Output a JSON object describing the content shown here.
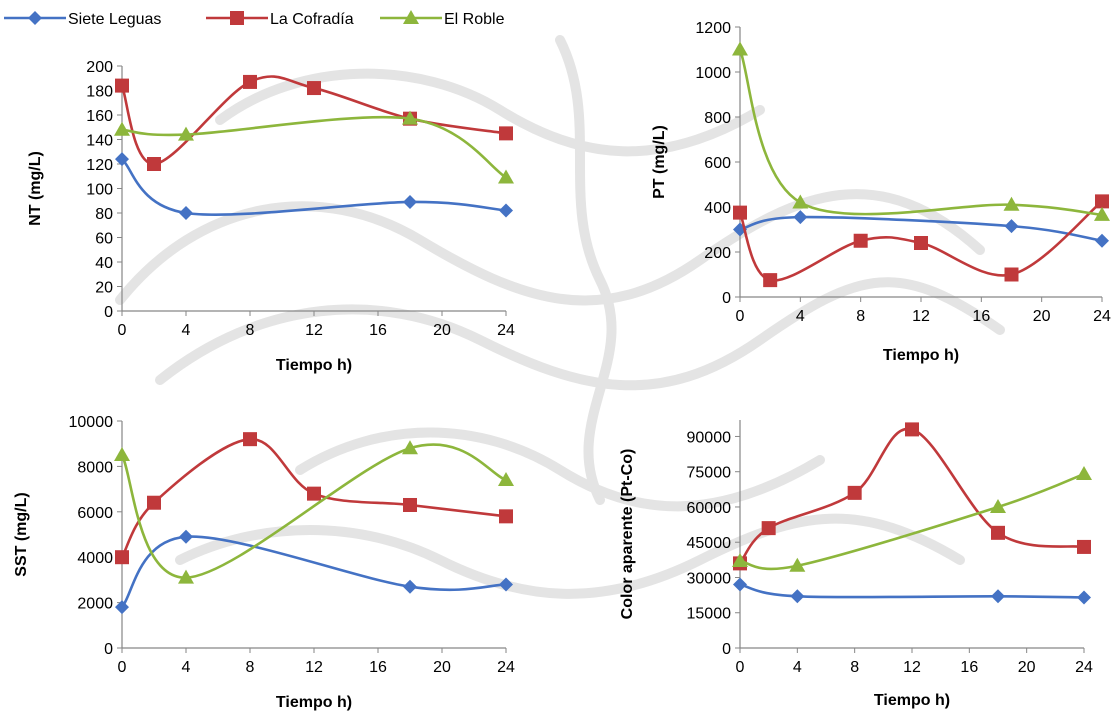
{
  "legend": {
    "items": [
      {
        "label": "Siete Leguas",
        "color": "#4472C4",
        "marker": "diamond"
      },
      {
        "label": "La Cofradía",
        "color": "#C0393B",
        "marker": "square"
      },
      {
        "label": "El Roble",
        "color": "#8DB63C",
        "marker": "triangle"
      }
    ]
  },
  "chart_data": [
    {
      "type": "line",
      "smooth": true,
      "xlabel": "Tiempo h)",
      "ylabel": "NT (mg/L)",
      "xlim": [
        0,
        24
      ],
      "ylim": [
        0,
        200
      ],
      "xticks": [
        0,
        4,
        8,
        12,
        16,
        20,
        24
      ],
      "yticks": [
        0,
        20,
        40,
        60,
        80,
        100,
        120,
        140,
        160,
        180,
        200
      ],
      "grid": false,
      "series": [
        {
          "name": "Siete Leguas",
          "color": "#4472C4",
          "marker": "diamond",
          "x": [
            0,
            4,
            18,
            24
          ],
          "y": [
            124,
            80,
            89,
            82
          ]
        },
        {
          "name": "La Cofradía",
          "color": "#C0393B",
          "marker": "square",
          "x": [
            0,
            2,
            8,
            12,
            18,
            24
          ],
          "y": [
            184,
            120,
            187,
            182,
            157,
            145
          ]
        },
        {
          "name": "El Roble",
          "color": "#8DB63C",
          "marker": "triangle",
          "x": [
            0,
            4,
            18,
            24
          ],
          "y": [
            148,
            144,
            157,
            109
          ]
        }
      ]
    },
    {
      "type": "line",
      "smooth": true,
      "xlabel": "Tiempo h)",
      "ylabel": "PT (mg/L)",
      "xlim": [
        0,
        24
      ],
      "ylim": [
        0,
        1200
      ],
      "xticks": [
        0,
        4,
        8,
        12,
        16,
        20,
        24
      ],
      "yticks": [
        0,
        200,
        400,
        600,
        800,
        1000,
        1200
      ],
      "grid": false,
      "series": [
        {
          "name": "Siete Leguas",
          "color": "#4472C4",
          "marker": "diamond",
          "x": [
            0,
            4,
            18,
            24
          ],
          "y": [
            300,
            355,
            315,
            250
          ]
        },
        {
          "name": "La Cofradía",
          "color": "#C0393B",
          "marker": "square",
          "x": [
            0,
            2,
            8,
            12,
            18,
            24
          ],
          "y": [
            375,
            75,
            250,
            240,
            100,
            425
          ]
        },
        {
          "name": "El Roble",
          "color": "#8DB63C",
          "marker": "triangle",
          "x": [
            0,
            4,
            18,
            24
          ],
          "y": [
            1100,
            420,
            410,
            365
          ]
        }
      ]
    },
    {
      "type": "line",
      "smooth": true,
      "xlabel": "Tiempo h)",
      "ylabel": "SST (mg/L)",
      "xlim": [
        0,
        24
      ],
      "ylim": [
        0,
        10000
      ],
      "xticks": [
        0,
        4,
        8,
        12,
        16,
        20,
        24
      ],
      "yticks": [
        0,
        2000,
        4000,
        6000,
        8000,
        10000
      ],
      "grid": false,
      "series": [
        {
          "name": "Siete Leguas",
          "color": "#4472C4",
          "marker": "diamond",
          "x": [
            0,
            4,
            18,
            24
          ],
          "y": [
            1800,
            4900,
            2700,
            2800
          ]
        },
        {
          "name": "La Cofradía",
          "color": "#C0393B",
          "marker": "square",
          "x": [
            0,
            2,
            8,
            12,
            18,
            24
          ],
          "y": [
            4000,
            6400,
            9200,
            6800,
            6300,
            5800
          ]
        },
        {
          "name": "El Roble",
          "color": "#8DB63C",
          "marker": "triangle",
          "x": [
            0,
            4,
            18,
            24
          ],
          "y": [
            8500,
            3100,
            8800,
            7400
          ]
        }
      ]
    },
    {
      "type": "line",
      "smooth": true,
      "xlabel": "Tiempo h)",
      "ylabel": "Color aparente (Pt-Co)",
      "xlim": [
        0,
        24
      ],
      "ylim": [
        0,
        97000
      ],
      "xticks": [
        0,
        4,
        8,
        12,
        16,
        20,
        24
      ],
      "yticks": [
        0,
        15000,
        30000,
        45000,
        60000,
        75000,
        90000
      ],
      "grid": false,
      "series": [
        {
          "name": "Siete Leguas",
          "color": "#4472C4",
          "marker": "diamond",
          "x": [
            0,
            4,
            18,
            24
          ],
          "y": [
            27000,
            22000,
            22000,
            21500
          ]
        },
        {
          "name": "La Cofradía",
          "color": "#C0393B",
          "marker": "square",
          "x": [
            0,
            2,
            8,
            12,
            18,
            24
          ],
          "y": [
            36000,
            51000,
            66000,
            93000,
            49000,
            43000
          ]
        },
        {
          "name": "El Roble",
          "color": "#8DB63C",
          "marker": "triangle",
          "x": [
            0,
            4,
            18,
            24
          ],
          "y": [
            37000,
            35000,
            60000,
            74000
          ]
        }
      ]
    }
  ]
}
